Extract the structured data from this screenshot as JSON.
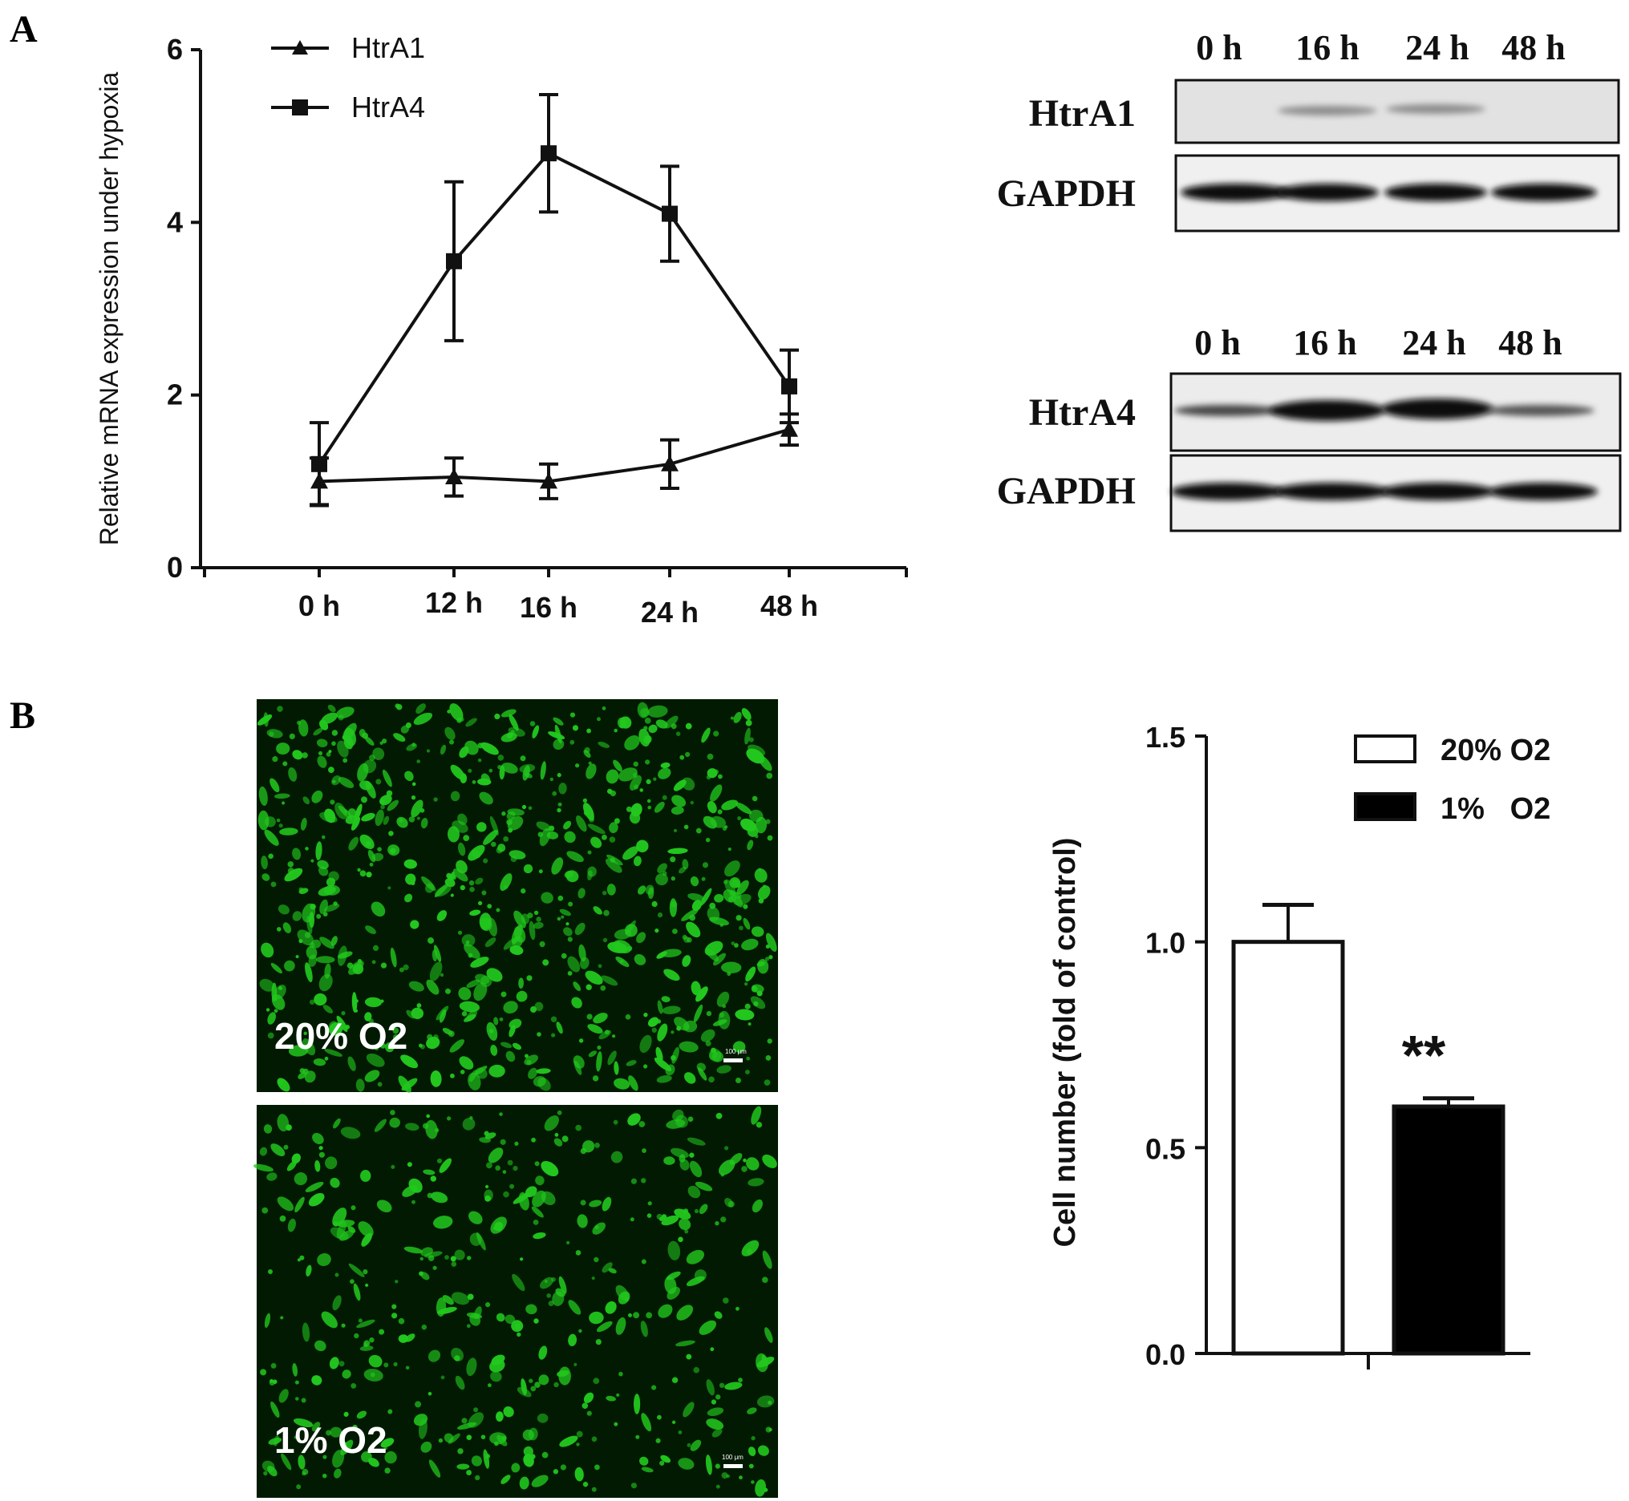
{
  "panels": {
    "a_letter": "A",
    "b_letter": "B"
  },
  "chart_data": [
    {
      "type": "line",
      "ylabel": "Relative mRNA expression under hypoxia",
      "xlabel": "",
      "categories": [
        "0 h",
        "12 h",
        "16 h",
        "24 h",
        "48 h"
      ],
      "x_positions_h": [
        0,
        12,
        16,
        24,
        48
      ],
      "ylim": [
        0,
        6
      ],
      "yticks": [
        "0",
        "2",
        "4",
        "6"
      ],
      "legend_position": "top-left",
      "series": [
        {
          "name": "HtrA1",
          "marker": "triangle",
          "values": [
            1.0,
            1.05,
            1.0,
            1.2,
            1.6
          ],
          "errors": [
            0.27,
            0.22,
            0.2,
            0.28,
            0.18
          ]
        },
        {
          "name": "HtrA4",
          "marker": "square",
          "values": [
            1.2,
            3.55,
            4.8,
            4.1,
            2.1
          ],
          "errors": [
            0.48,
            0.92,
            0.68,
            0.55,
            0.42
          ]
        }
      ]
    },
    {
      "type": "bar",
      "ylabel": "Cell number (fold of control)",
      "xlabel": "",
      "categories": [
        "20% O2",
        "1%   O2"
      ],
      "values": [
        1.0,
        0.6
      ],
      "errors": [
        0.09,
        0.02
      ],
      "ylim": [
        0,
        1.5
      ],
      "yticks": [
        "0.0",
        "0.5",
        "1.0",
        "1.5"
      ],
      "legend_position": "top-right",
      "series_colors": [
        "#ffffff",
        "#000000"
      ],
      "annotation": "**"
    }
  ],
  "western_blots": {
    "htra1_blot": {
      "lanes": [
        "0 h",
        "16 h",
        "24 h",
        "48 h"
      ],
      "rows": [
        "HtrA1",
        "GAPDH"
      ]
    },
    "htra4_blot": {
      "lanes": [
        "0 h",
        "16 h",
        "24 h",
        "48 h"
      ],
      "rows": [
        "HtrA4",
        "GAPDH"
      ]
    }
  },
  "micrographs": {
    "normoxia_label": "20%  O2",
    "hypoxia_label": "1%  O2",
    "scale_bar_text": "100 μm",
    "fluorescence_color": "#22c81e"
  }
}
